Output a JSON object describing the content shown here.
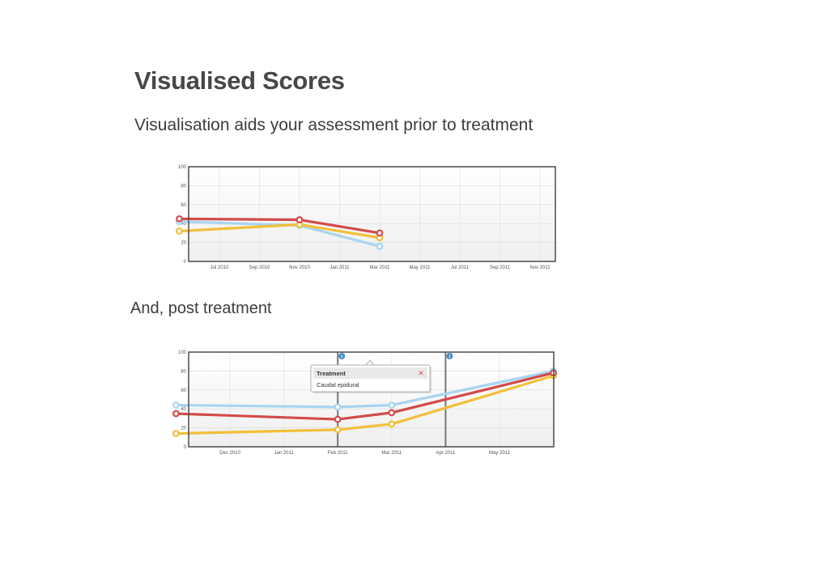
{
  "page": {
    "title": "Visualised Scores",
    "subtitle": "Visualisation aids your assessment prior to treatment",
    "post_label": "And, post treatment"
  },
  "chart_data": [
    {
      "type": "line",
      "title": "",
      "xlabel": "",
      "ylabel": "",
      "ylim": [
        0,
        100
      ],
      "y_ticks": [
        0,
        20,
        40,
        60,
        80,
        100
      ],
      "x_tick_labels": [
        "Jul 2010",
        "Sep 2010",
        "Nov 2010",
        "Jan 2011",
        "Mar 2011",
        "May 2011",
        "Jul 2011",
        "Sep 2011",
        "Nov 2011"
      ],
      "grid": true,
      "series": [
        {
          "color": "#a9d4f0",
          "points": [
            {
              "x": "May 2010",
              "y": 42
            },
            {
              "x": "Nov 2010",
              "y": 38
            },
            {
              "x": "Mar 2011",
              "y": 16
            }
          ]
        },
        {
          "color": "#f2bf3a",
          "points": [
            {
              "x": "May 2010",
              "y": 32
            },
            {
              "x": "Nov 2010",
              "y": 39
            },
            {
              "x": "Mar 2011",
              "y": 25
            }
          ]
        },
        {
          "color": "#d24b4b",
          "points": [
            {
              "x": "May 2010",
              "y": 45
            },
            {
              "x": "Nov 2010",
              "y": 44
            },
            {
              "x": "Mar 2011",
              "y": 30
            }
          ]
        }
      ]
    },
    {
      "type": "line",
      "title": "",
      "xlabel": "",
      "ylabel": "",
      "ylim": [
        0,
        100
      ],
      "y_ticks": [
        0,
        20,
        40,
        60,
        80,
        100
      ],
      "x_tick_labels": [
        "Dec 2010",
        "Jan 2011",
        "Feb 2011",
        "Mar 2011",
        "Apr 2011",
        "May 2011"
      ],
      "grid": true,
      "series": [
        {
          "color": "#a9d4f0",
          "points": [
            {
              "x": "Nov 2010",
              "y": 44
            },
            {
              "x": "Feb 2011",
              "y": 42
            },
            {
              "x": "Mar 2011",
              "y": 44
            },
            {
              "x": "Jun 2011",
              "y": 80
            }
          ]
        },
        {
          "color": "#f2bf3a",
          "points": [
            {
              "x": "Nov 2010",
              "y": 14
            },
            {
              "x": "Feb 2011",
              "y": 18
            },
            {
              "x": "Mar 2011",
              "y": 24
            },
            {
              "x": "Jun 2011",
              "y": 75
            }
          ]
        },
        {
          "color": "#d24b4b",
          "points": [
            {
              "x": "Nov 2010",
              "y": 35
            },
            {
              "x": "Feb 2011",
              "y": 29
            },
            {
              "x": "Mar 2011",
              "y": 36
            },
            {
              "x": "Jun 2011",
              "y": 78
            }
          ]
        }
      ],
      "event_markers": [
        {
          "x": "Feb 2011",
          "icon": "info-icon",
          "glyph": "i"
        },
        {
          "x": "Apr 2011",
          "icon": "info-icon",
          "glyph": "i"
        }
      ],
      "tooltip": {
        "title": "Treatment",
        "body": "Caudal epidural",
        "close_glyph": "✕",
        "close_icon": "close-icon",
        "close_color": "#d9534f"
      }
    }
  ]
}
